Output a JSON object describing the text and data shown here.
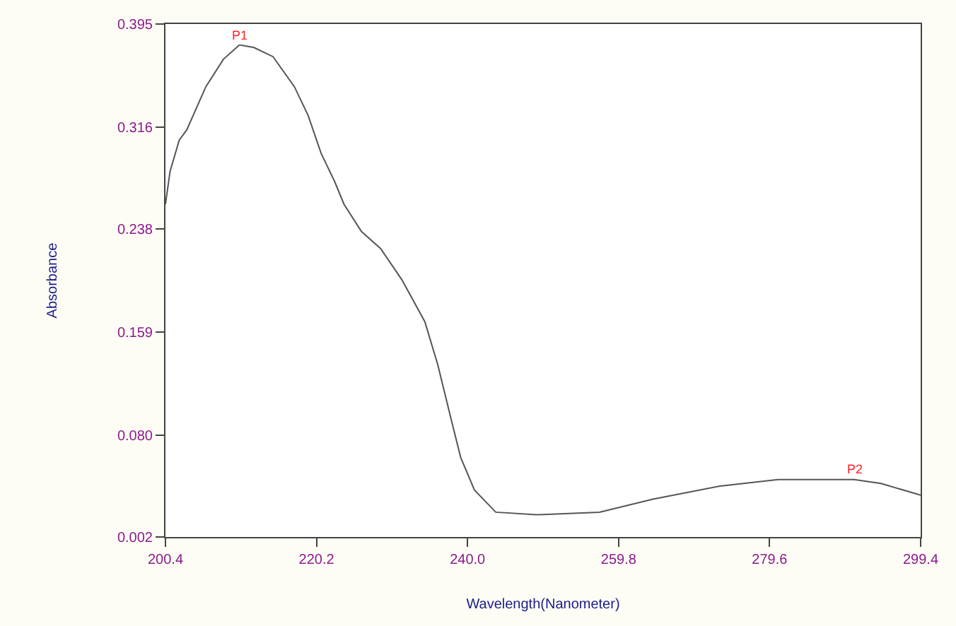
{
  "chart_data": {
    "type": "line",
    "xlabel": "Wavelength(Nanometer)",
    "ylabel": "Absorbance",
    "xlim": [
      200.4,
      299.4
    ],
    "ylim": [
      0.002,
      0.395
    ],
    "xticks": [
      200.4,
      220.2,
      {
        "value": 240.0,
        "label": "240.0"
      },
      259.8,
      279.6,
      299.4
    ],
    "yticks": [
      0.002,
      {
        "value": 0.08,
        "label": "0.080"
      },
      0.159,
      0.238,
      0.316,
      0.395
    ],
    "marker": "none",
    "line_style": "solid",
    "series": [
      {
        "color": "#555555",
        "x": [
          200.4,
          201.0,
          202.2,
          203.2,
          205.7,
          208.0,
          210.1,
          212.0,
          214.5,
          217.3,
          219.1,
          220.8,
          222.6,
          223.8,
          226.1,
          228.6,
          231.4,
          234.4,
          236.1,
          237.9,
          239.1,
          240.9,
          243.7,
          249.0,
          257.3,
          264.3,
          273.1,
          280.7,
          290.7,
          294.2,
          299.4
        ],
        "values": [
          0.257,
          0.282,
          0.306,
          0.314,
          0.347,
          0.368,
          0.379,
          0.377,
          0.37,
          0.347,
          0.325,
          0.296,
          0.274,
          0.257,
          0.236,
          0.223,
          0.199,
          0.167,
          0.134,
          0.091,
          0.063,
          0.038,
          0.021,
          0.019,
          0.021,
          0.031,
          0.041,
          0.046,
          0.046,
          0.043,
          0.034
        ]
      }
    ],
    "annotations": [
      {
        "text": "P1",
        "x": 210.1,
        "y": 0.379
      },
      {
        "text": "P2",
        "x": 290.7,
        "y": 0.046
      }
    ]
  }
}
